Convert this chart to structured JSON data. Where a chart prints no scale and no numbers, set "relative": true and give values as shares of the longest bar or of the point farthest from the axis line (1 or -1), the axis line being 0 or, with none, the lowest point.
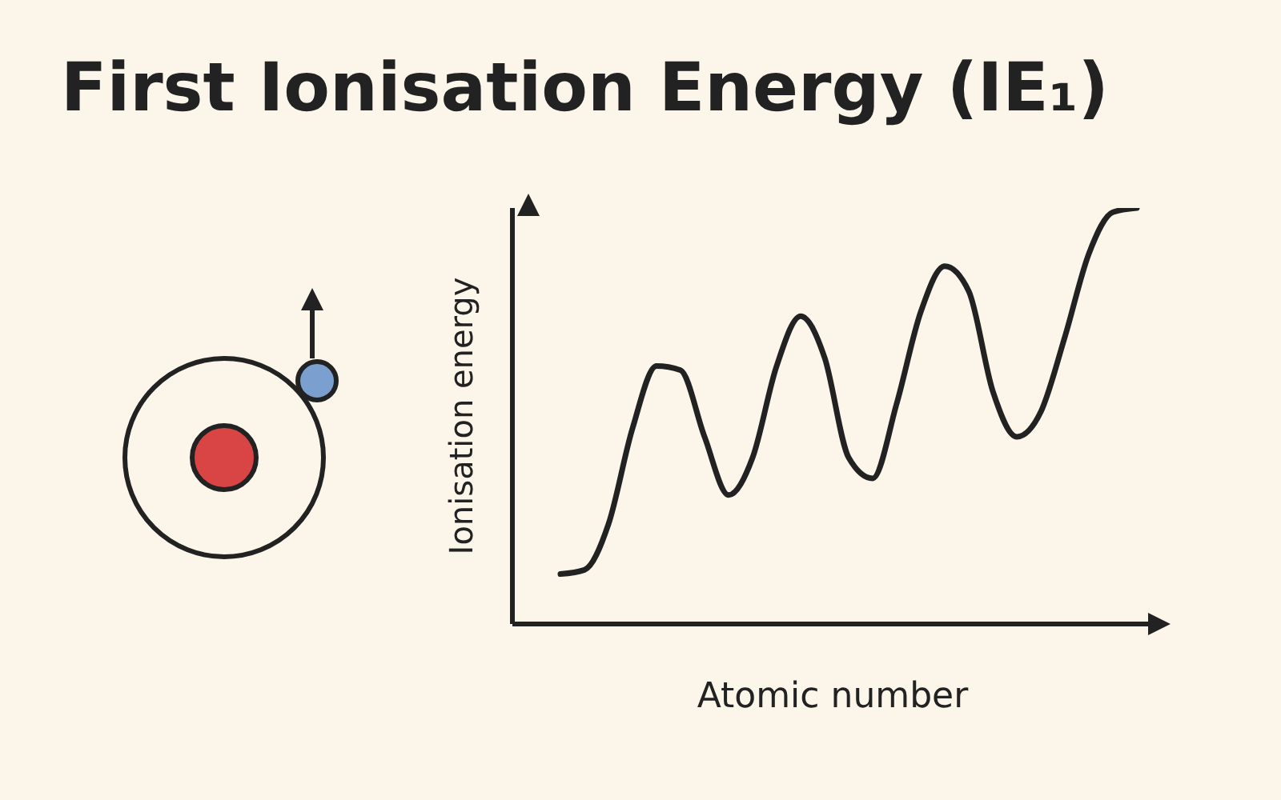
{
  "chart_data": {
    "type": "line",
    "title": "First Ionisation Energy (IE₁)",
    "xlabel": "Atomic number",
    "ylabel": "Ionisation energy",
    "relative": true,
    "categories": [
      null,
      null,
      null,
      null,
      null,
      null,
      null,
      null,
      null,
      null,
      null,
      null,
      null,
      null,
      null,
      null,
      null,
      null,
      null,
      null,
      null,
      null,
      null,
      null,
      null
    ],
    "series": [
      {
        "color": "#222222",
        "values": [
          0.12,
          0.13,
          0.24,
          0.47,
          0.62,
          0.61,
          0.45,
          0.31,
          0.4,
          0.62,
          0.74,
          0.64,
          0.4,
          0.35,
          0.53,
          0.75,
          0.86,
          0.8,
          0.56,
          0.45,
          0.51,
          0.69,
          0.89,
          0.99,
          1.0
        ]
      }
    ],
    "grid": false,
    "legend": false,
    "marker": "none",
    "line_style": "solid"
  }
}
